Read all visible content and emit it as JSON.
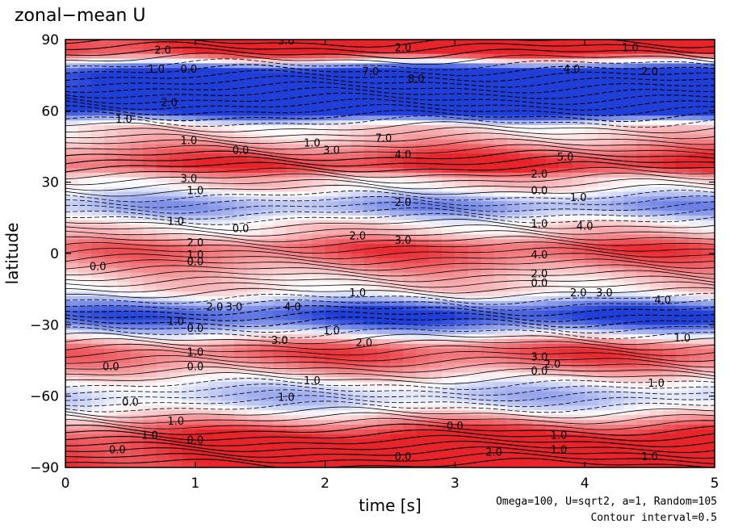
{
  "chart_data": {
    "type": "heatmap",
    "title": "zonal−mean U",
    "xlabel": "time [s]",
    "ylabel": "latitude",
    "xlim": [
      0,
      5
    ],
    "ylim": [
      -90,
      90
    ],
    "x_ticks": [
      0,
      1,
      2,
      3,
      4,
      5
    ],
    "y_ticks": [
      -90,
      -60,
      -30,
      0,
      30,
      60,
      90
    ],
    "y_tick_labels": [
      "−90",
      "−60",
      "−30",
      "0",
      "30",
      "60",
      "90"
    ],
    "annotation_params": "Omega=100, U=sqrt2, a=1, Random=105",
    "annotation_interval": "Contour interval=0.5",
    "contour_interval": 0.5,
    "colors": {
      "positive": "#e8242b",
      "negative": "#1f3fd8",
      "zero": "#ffffff"
    },
    "latitude_bands": [
      {
        "lat": 86,
        "u": 6.0
      },
      {
        "lat": 75,
        "u": -7.0
      },
      {
        "lat": 62,
        "u": -8.0
      },
      {
        "lat": 52,
        "u": 1.0
      },
      {
        "lat": 37,
        "u": 5.0
      },
      {
        "lat": 30,
        "u": 1.0
      },
      {
        "lat": 20,
        "u": -2.5
      },
      {
        "lat": 10,
        "u": 1.0
      },
      {
        "lat": 2,
        "u": 4.0
      },
      {
        "lat": -14,
        "u": 1.0
      },
      {
        "lat": -26,
        "u": -5.0
      },
      {
        "lat": -42,
        "u": 4.0
      },
      {
        "lat": -60,
        "u": -1.5
      },
      {
        "lat": -80,
        "u": 6.0
      }
    ],
    "contour_labels": [
      {
        "t": 1.7,
        "lat": 88,
        "text": "3.0"
      },
      {
        "t": 0.75,
        "lat": 84,
        "text": "2.0"
      },
      {
        "t": 2.6,
        "lat": 85,
        "text": "2.0"
      },
      {
        "t": 4.35,
        "lat": 85,
        "text": "1.0"
      },
      {
        "t": 0.7,
        "lat": 76,
        "text": "1.0"
      },
      {
        "t": 0.95,
        "lat": 76,
        "text": "0.0"
      },
      {
        "t": 2.35,
        "lat": 75,
        "text": "7.0"
      },
      {
        "t": 2.7,
        "lat": 72,
        "text": "8.0"
      },
      {
        "t": 3.9,
        "lat": 76,
        "text": "4.0"
      },
      {
        "t": 4.5,
        "lat": 75,
        "text": "2.0"
      },
      {
        "t": 0.8,
        "lat": 62,
        "text": "2.0"
      },
      {
        "t": 0.45,
        "lat": 55,
        "text": "1.0"
      },
      {
        "t": 0.95,
        "lat": 46,
        "text": "1.0"
      },
      {
        "t": 1.35,
        "lat": 42,
        "text": "0.0"
      },
      {
        "t": 1.9,
        "lat": 45,
        "text": "1.0"
      },
      {
        "t": 2.05,
        "lat": 42,
        "text": "3.0"
      },
      {
        "t": 2.45,
        "lat": 47,
        "text": "7.0"
      },
      {
        "t": 2.6,
        "lat": 40,
        "text": "4.0"
      },
      {
        "t": 3.85,
        "lat": 39,
        "text": "5.0"
      },
      {
        "t": 3.65,
        "lat": 32,
        "text": "2.0"
      },
      {
        "t": 0.95,
        "lat": 30,
        "text": "3.0"
      },
      {
        "t": 1.0,
        "lat": 25,
        "text": "1.0"
      },
      {
        "t": 2.6,
        "lat": 20,
        "text": "2.0"
      },
      {
        "t": 3.65,
        "lat": 25,
        "text": "0.0"
      },
      {
        "t": 3.95,
        "lat": 22,
        "text": "1.0"
      },
      {
        "t": 0.85,
        "lat": 12,
        "text": "1.0"
      },
      {
        "t": 1.35,
        "lat": 9,
        "text": "0.0"
      },
      {
        "t": 2.25,
        "lat": 6,
        "text": "2.0"
      },
      {
        "t": 2.6,
        "lat": 4,
        "text": "3.0"
      },
      {
        "t": 3.65,
        "lat": 11,
        "text": "1.0"
      },
      {
        "t": 4.0,
        "lat": 10,
        "text": "4.0"
      },
      {
        "t": 1.0,
        "lat": 3,
        "text": "2.0"
      },
      {
        "t": 1.0,
        "lat": -2,
        "text": "1.0"
      },
      {
        "t": 1.0,
        "lat": -5,
        "text": "0.0"
      },
      {
        "t": 0.25,
        "lat": -7,
        "text": "0.0"
      },
      {
        "t": 3.65,
        "lat": -2,
        "text": "4.0"
      },
      {
        "t": 3.65,
        "lat": -10,
        "text": "2.0"
      },
      {
        "t": 3.65,
        "lat": -14,
        "text": "0.0"
      },
      {
        "t": 1.15,
        "lat": -24,
        "text": "2.0"
      },
      {
        "t": 1.3,
        "lat": -24,
        "text": "3.0"
      },
      {
        "t": 1.75,
        "lat": -24,
        "text": "4.0"
      },
      {
        "t": 2.25,
        "lat": -18,
        "text": "1.0"
      },
      {
        "t": 3.95,
        "lat": -18,
        "text": "2.0"
      },
      {
        "t": 4.15,
        "lat": -18,
        "text": "3.0"
      },
      {
        "t": 4.6,
        "lat": -21,
        "text": "4.0"
      },
      {
        "t": 0.85,
        "lat": -30,
        "text": "1.0"
      },
      {
        "t": 1.0,
        "lat": -33,
        "text": "0.0"
      },
      {
        "t": 2.05,
        "lat": -34,
        "text": "1.0"
      },
      {
        "t": 2.3,
        "lat": -39,
        "text": "2.0"
      },
      {
        "t": 1.65,
        "lat": -38,
        "text": "3.0"
      },
      {
        "t": 4.75,
        "lat": -37,
        "text": "1.0"
      },
      {
        "t": 1.0,
        "lat": -43,
        "text": "1.0"
      },
      {
        "t": 3.65,
        "lat": -45,
        "text": "3.0"
      },
      {
        "t": 3.75,
        "lat": -48,
        "text": "2.0"
      },
      {
        "t": 3.65,
        "lat": -51,
        "text": "0.0"
      },
      {
        "t": 0.35,
        "lat": -49,
        "text": "0.0"
      },
      {
        "t": 1.0,
        "lat": -49,
        "text": "0.0"
      },
      {
        "t": 1.9,
        "lat": -55,
        "text": "1.0"
      },
      {
        "t": 4.55,
        "lat": -56,
        "text": "1.0"
      },
      {
        "t": 1.7,
        "lat": -62,
        "text": "1.0"
      },
      {
        "t": 0.5,
        "lat": -64,
        "text": "0.0"
      },
      {
        "t": 0.85,
        "lat": -72,
        "text": "1.0"
      },
      {
        "t": 3.0,
        "lat": -74,
        "text": "0.0"
      },
      {
        "t": 0.65,
        "lat": -78,
        "text": "1.0"
      },
      {
        "t": 1.0,
        "lat": -80,
        "text": "0.0"
      },
      {
        "t": 0.4,
        "lat": -84,
        "text": "0.0"
      },
      {
        "t": 2.6,
        "lat": -87,
        "text": "0.0"
      },
      {
        "t": 3.3,
        "lat": -85,
        "text": "2.0"
      },
      {
        "t": 3.8,
        "lat": -78,
        "text": "1.0"
      },
      {
        "t": 3.8,
        "lat": -84,
        "text": "1.0"
      },
      {
        "t": 4.5,
        "lat": -87,
        "text": "1.0"
      }
    ]
  }
}
